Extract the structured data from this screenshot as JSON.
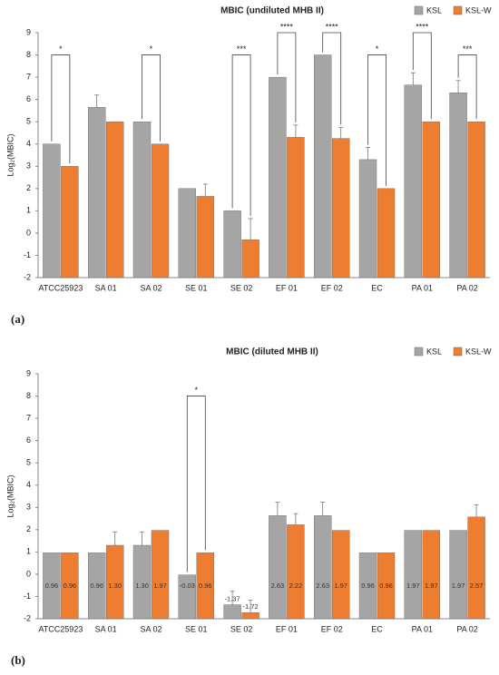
{
  "chart_data": [
    {
      "type": "bar",
      "title": "MBIC (undiluted MHB II)",
      "y_label": "Log₂(MBIC)",
      "panel_label": "(a)",
      "categories": [
        "ATCC25923",
        "SA 01",
        "SA 02",
        "SE 01",
        "SE 02",
        "EF 01",
        "EF 02",
        "EC",
        "PA 01",
        "PA 02"
      ],
      "series": [
        {
          "name": "KSL",
          "color": "#a5a5a5",
          "values": [
            4,
            5.65,
            5,
            2,
            1,
            7,
            8,
            3.3,
            6.65,
            6.3
          ],
          "errors": [
            null,
            0.55,
            null,
            null,
            null,
            null,
            null,
            0.55,
            0.55,
            0.55
          ]
        },
        {
          "name": "KSL-W",
          "color": "#ed7d31",
          "values": [
            3,
            5,
            4,
            1.65,
            -0.3,
            4.3,
            4.25,
            2,
            5,
            5
          ],
          "errors": [
            null,
            null,
            null,
            0.55,
            0.95,
            0.55,
            0.5,
            null,
            null,
            null
          ]
        }
      ],
      "significance": [
        "*",
        null,
        "*",
        null,
        "***",
        "****",
        "****",
        "*",
        "****",
        "***"
      ],
      "ylim": [
        -2,
        9
      ],
      "yticks": [
        -2,
        -1,
        0,
        1,
        2,
        3,
        4,
        5,
        6,
        7,
        8,
        9
      ],
      "legend": "top-right"
    },
    {
      "type": "bar",
      "title": "MBIC (diluted MHB II)",
      "y_label": "Log₂(MBIC)",
      "panel_label": "(b)",
      "categories": [
        "ATCC25923",
        "SA 01",
        "SA 02",
        "SE 01",
        "SE 02",
        "EF 01",
        "EF 02",
        "EC",
        "PA 01",
        "PA 02"
      ],
      "series": [
        {
          "name": "KSL",
          "color": "#a5a5a5",
          "values": [
            0.96,
            0.96,
            1.3,
            -0.03,
            -1.37,
            2.63,
            2.63,
            0.96,
            1.97,
            1.97
          ],
          "value_labels": [
            "0.96",
            "0.96",
            "1.30",
            "-0.03",
            "-1.37",
            "2.63",
            "2.63",
            "0.96",
            "1.97",
            "1.97"
          ],
          "errors": [
            null,
            null,
            0.6,
            null,
            0.6,
            0.6,
            0.6,
            null,
            null,
            null
          ]
        },
        {
          "name": "KSL-W",
          "color": "#ed7d31",
          "values": [
            0.96,
            1.3,
            1.97,
            0.96,
            -1.72,
            2.22,
            1.97,
            0.96,
            1.97,
            2.57
          ],
          "value_labels": [
            "0.96",
            "1.30",
            "1.97",
            "0.96",
            "-1.72",
            "2.22",
            "1.97",
            "0.96",
            "1.97",
            "2.57"
          ],
          "errors": [
            null,
            0.6,
            null,
            null,
            0.55,
            0.5,
            null,
            null,
            null,
            0.55
          ]
        }
      ],
      "significance": [
        null,
        null,
        null,
        "*",
        null,
        null,
        null,
        null,
        null,
        null
      ],
      "ylim": [
        -2,
        9
      ],
      "yticks": [
        -2,
        -1,
        0,
        1,
        2,
        3,
        4,
        5,
        6,
        7,
        8,
        9
      ],
      "legend": "top-right"
    }
  ]
}
